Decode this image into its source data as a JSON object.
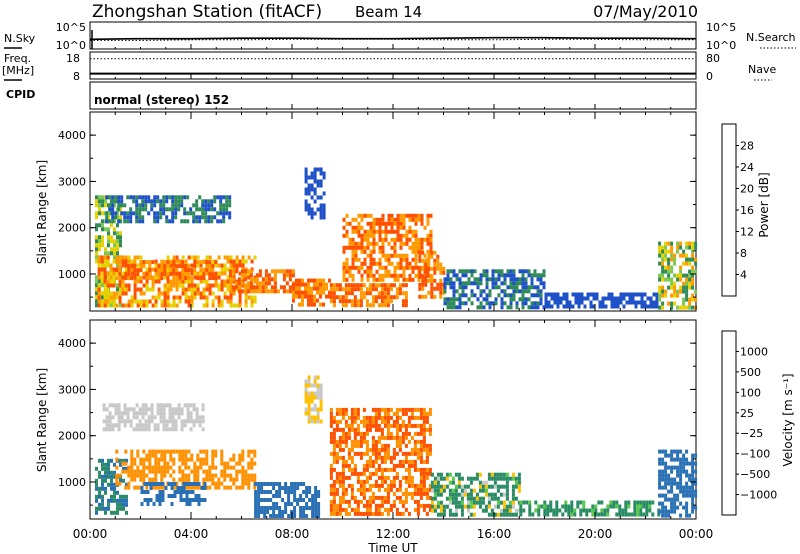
{
  "header": {
    "title": "Zhongshan Station (fitACF)",
    "beam": "Beam 14",
    "date": "07/May/2010"
  },
  "left_labels": {
    "nsky": "N.Sky",
    "freq": "Freq.",
    "mhz": "[MHz]",
    "cpid": "CPID"
  },
  "right_labels": {
    "nsearch": "N.Search",
    "nave": "Nave"
  },
  "noise_ticks": {
    "top": "10^5",
    "bottom": "10^0"
  },
  "freq_ticks": {
    "top": "18",
    "bottom": "8"
  },
  "nave_ticks": {
    "top": "80",
    "bottom": "0"
  },
  "cpid_text": "normal (stereo) 152",
  "power_panel": {
    "ylabel": "Slant Range [km]",
    "colorbar_label": "Power [dB]",
    "colorbar_ticks": [
      "28",
      "24",
      "20",
      "16",
      "12",
      "8",
      "4"
    ],
    "colors": [
      "#0000ff",
      "#1e50c8",
      "#2e8b57",
      "#7cc850",
      "#e6d200",
      "#ff9a00",
      "#ff5000",
      "#ff0000"
    ]
  },
  "velocity_panel": {
    "ylabel": "Slant Range [km]",
    "colorbar_label": "Velocity [m s⁻¹]",
    "colorbar_ticks": [
      "1000",
      "500",
      "100",
      "25",
      "−25",
      "−100",
      "−500",
      "−1000"
    ],
    "colors": [
      "#1a3cd2",
      "#2a70b4",
      "#2a8c64",
      "#5ac84a",
      "#c8c8c8",
      "#ffc000",
      "#ff9000",
      "#ff5000",
      "#ff0000"
    ]
  },
  "chart_data": {
    "type": "heatmap",
    "x_ticks": [
      "00:00",
      "04:00",
      "08:00",
      "12:00",
      "16:00",
      "20:00",
      "00:00"
    ],
    "xlim_hours": [
      0,
      24
    ],
    "ylim_km": [
      200,
      4500
    ],
    "y_ticks": [
      "1000",
      "2000",
      "3000",
      "4000"
    ],
    "xlabel": "Time UT",
    "series": [
      {
        "blocks": [
          {
            "t": [
              0.2,
              1.2
            ],
            "r": [
              300,
              2700
            ],
            "v": [
              8,
              20
            ]
          },
          {
            "t": [
              0.3,
              6.5
            ],
            "r": [
              300,
              1400
            ],
            "v": [
              16,
              28
            ]
          },
          {
            "t": [
              1.0,
              5.0
            ],
            "r": [
              900,
              1300
            ],
            "v": [
              20,
              28
            ]
          },
          {
            "t": [
              0.6,
              5.5
            ],
            "r": [
              2100,
              2700
            ],
            "v": [
              4,
              12
            ]
          },
          {
            "t": [
              5.5,
              8.0
            ],
            "r": [
              600,
              1100
            ],
            "v": [
              20,
              28
            ]
          },
          {
            "t": [
              8.0,
              9.5
            ],
            "r": [
              300,
              900
            ],
            "v": [
              20,
              28
            ]
          },
          {
            "t": [
              9.5,
              12.5
            ],
            "r": [
              300,
              800
            ],
            "v": [
              20,
              28
            ]
          },
          {
            "t": [
              8.5,
              9.3
            ],
            "r": [
              2200,
              3300
            ],
            "v": [
              4,
              8
            ]
          },
          {
            "t": [
              10.0,
              13.5
            ],
            "r": [
              900,
              2300
            ],
            "v": [
              20,
              28
            ]
          },
          {
            "t": [
              13.0,
              14.0
            ],
            "r": [
              500,
              1500
            ],
            "v": [
              20,
              28
            ]
          },
          {
            "t": [
              14.0,
              18.0
            ],
            "r": [
              300,
              1100
            ],
            "v": [
              4,
              12
            ]
          },
          {
            "t": [
              18.0,
              22.5
            ],
            "r": [
              300,
              600
            ],
            "v": [
              4,
              8
            ]
          },
          {
            "t": [
              22.5,
              24.0
            ],
            "r": [
              300,
              1700
            ],
            "v": [
              8,
              24
            ]
          }
        ]
      },
      {
        "blocks": [
          {
            "t": [
              0.2,
              1.5
            ],
            "r": [
              300,
              1500
            ],
            "v": [
              100,
              1000
            ]
          },
          {
            "t": [
              0.5,
              4.5
            ],
            "r": [
              2100,
              2700
            ],
            "v": [
              -25,
              25
            ]
          },
          {
            "t": [
              1.0,
              6.5
            ],
            "r": [
              900,
              1700
            ],
            "v": [
              -500,
              -100
            ]
          },
          {
            "t": [
              2.0,
              4.5
            ],
            "r": [
              500,
              1000
            ],
            "v": [
              500,
              1000
            ]
          },
          {
            "t": [
              6.5,
              9.0
            ],
            "r": [
              300,
              1000
            ],
            "v": [
              500,
              1000
            ]
          },
          {
            "t": [
              8.5,
              9.2
            ],
            "r": [
              2300,
              3300
            ],
            "v": [
              -100,
              25
            ]
          },
          {
            "t": [
              9.5,
              13.5
            ],
            "r": [
              300,
              2600
            ],
            "v": [
              -1000,
              -100
            ]
          },
          {
            "t": [
              13.5,
              17.0
            ],
            "r": [
              300,
              1200
            ],
            "v": [
              -100,
              500
            ]
          },
          {
            "t": [
              17.0,
              22.5
            ],
            "r": [
              300,
              600
            ],
            "v": [
              25,
              500
            ]
          },
          {
            "t": [
              22.5,
              24.0
            ],
            "r": [
              300,
              1700
            ],
            "v": [
              500,
              1000
            ]
          }
        ]
      }
    ],
    "noise_levels": [
      1.8,
      1.9,
      1.9,
      2.0,
      2.0,
      1.9,
      1.9,
      2.0,
      2.1,
      2.1,
      2.0,
      2.0,
      1.9
    ],
    "frequency_mhz": 10.0,
    "search_noise_levels": [
      1.6,
      1.6,
      1.7,
      1.7,
      1.8,
      1.8,
      1.8,
      1.7,
      1.7,
      1.8,
      1.8,
      1.7,
      1.7
    ],
    "nave": 60
  }
}
